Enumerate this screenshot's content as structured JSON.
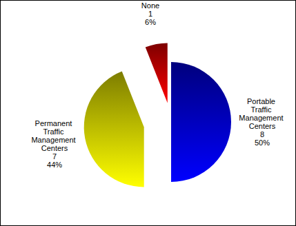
{
  "chart_data": {
    "type": "pie",
    "categories": [
      "Portable Traffic Management Centers",
      "Permanent Traffic Management Centers",
      "None"
    ],
    "values": [
      50,
      44,
      6
    ],
    "value_labels": [
      "50%",
      "44%",
      "6%"
    ],
    "counts": [
      8,
      7,
      1
    ],
    "colors": [
      "#0000ff",
      "#ffff00",
      "#ff0000"
    ],
    "data_labels": true
  }
}
